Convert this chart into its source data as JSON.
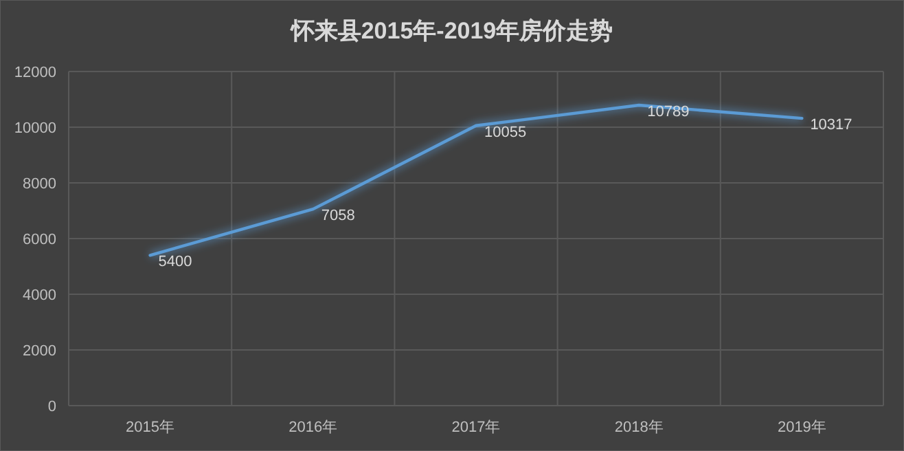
{
  "chart_data": {
    "type": "line",
    "title": "怀来县2015年-2019年房价走势",
    "categories": [
      "2015年",
      "2016年",
      "2017年",
      "2018年",
      "2019年"
    ],
    "series": [
      {
        "color": "#5b9bd5",
        "values": [
          5400,
          7058,
          10055,
          10789,
          10317
        ]
      }
    ],
    "ylim": [
      0,
      12000
    ],
    "yticks": [
      0,
      2000,
      4000,
      6000,
      8000,
      10000,
      12000
    ],
    "grid": true,
    "marker": "none",
    "line_style": "solid",
    "data_labels": true
  }
}
